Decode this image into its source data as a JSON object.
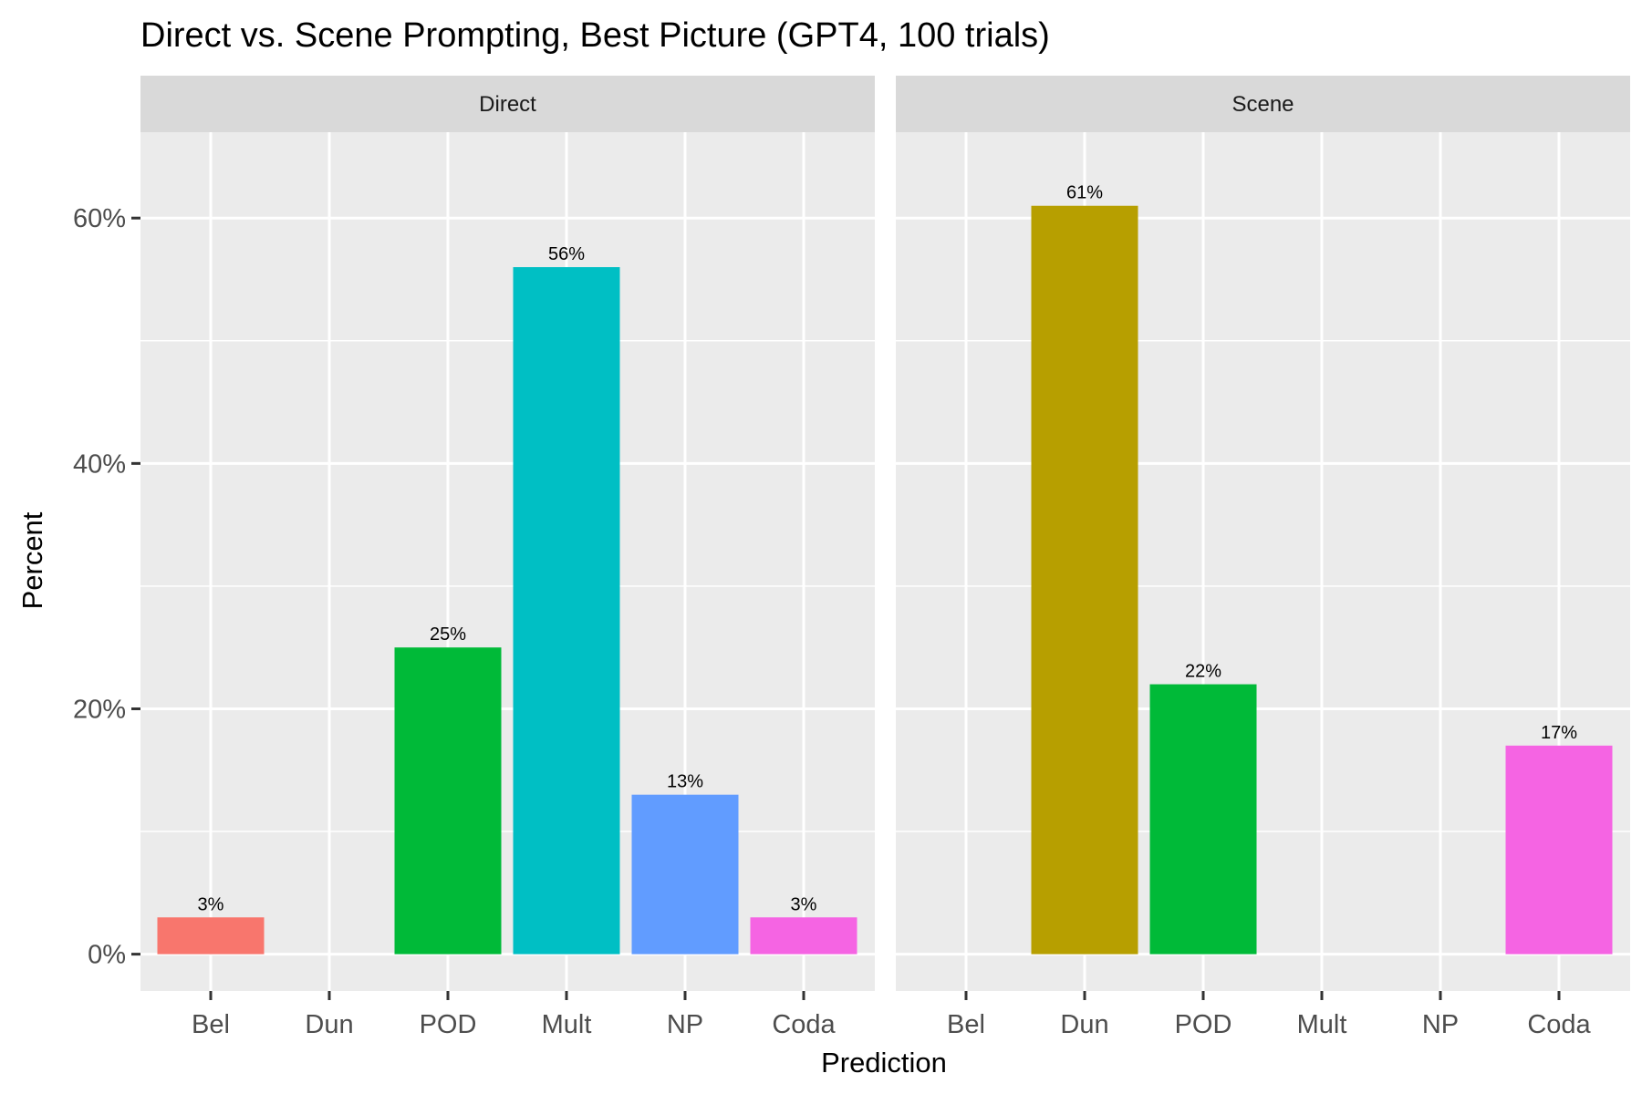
{
  "chart_data": {
    "type": "bar",
    "title": "Direct vs. Scene Prompting, Best Picture (GPT4, 100 trials)",
    "xlabel": "Prediction",
    "ylabel": "Percent",
    "ylim": [
      -3,
      67
    ],
    "y_ticks": [
      0,
      20,
      40,
      60
    ],
    "y_tick_labels": [
      "0%",
      "20%",
      "40%",
      "60%"
    ],
    "categories": [
      "Bel",
      "Dun",
      "POD",
      "Mult",
      "NP",
      "Coda"
    ],
    "category_colors": {
      "Bel": "#F8766D",
      "Dun": "#B79F00",
      "POD": "#00BA38",
      "Mult": "#00BFC4",
      "NP": "#619CFF",
      "Coda": "#F564E3"
    },
    "panels": [
      {
        "name": "Direct",
        "values": [
          3,
          null,
          25,
          56,
          13,
          3
        ],
        "labels": [
          "3%",
          "",
          "25%",
          "56%",
          "13%",
          "3%"
        ]
      },
      {
        "name": "Scene",
        "values": [
          null,
          61,
          22,
          null,
          null,
          17
        ],
        "labels": [
          "",
          "61%",
          "22%",
          "",
          "",
          "17%"
        ]
      }
    ],
    "grid": true,
    "legend": "none",
    "panel_background": "#EBEBEB",
    "strip_background": "#D9D9D9",
    "gridline_color": "#FFFFFF"
  }
}
